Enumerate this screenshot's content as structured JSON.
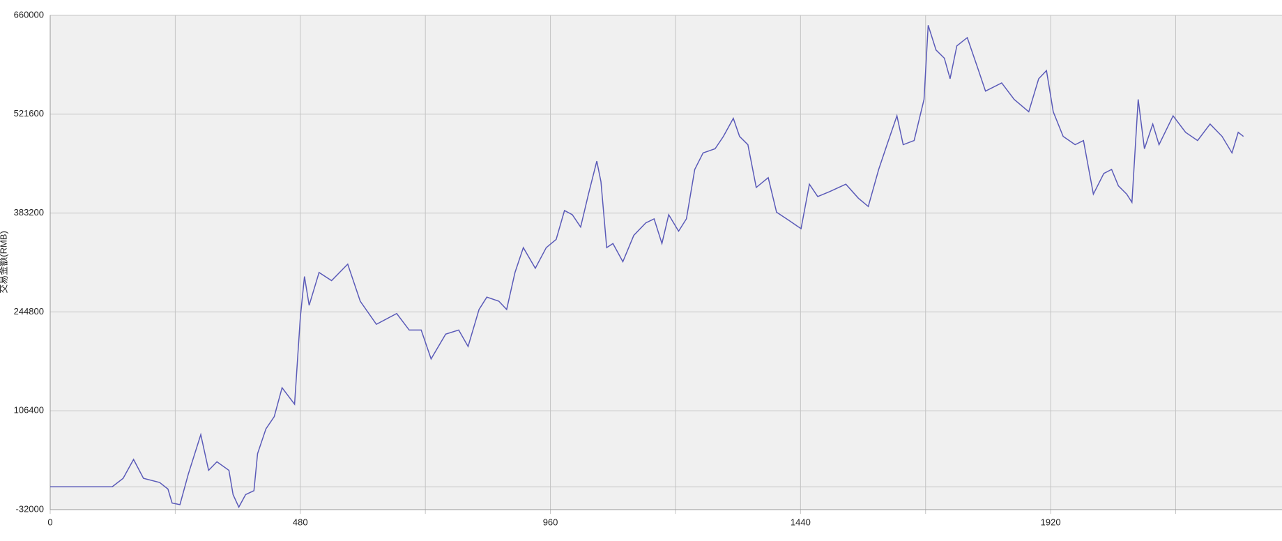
{
  "chart_data": {
    "type": "line",
    "y_label": "交易金额(RMB)",
    "x": [
      0,
      119,
      140,
      160,
      179,
      210,
      226,
      234,
      249,
      265,
      289,
      304,
      320,
      343,
      351,
      362,
      375,
      391,
      398,
      414,
      430,
      445,
      469,
      480,
      488,
      497,
      516,
      540,
      571,
      595,
      626,
      665,
      689,
      712,
      731,
      759,
      784,
      802,
      823,
      838,
      861,
      876,
      892,
      908,
      931,
      952,
      971,
      987,
      1002,
      1018,
      1033,
      1049,
      1057,
      1068,
      1080,
      1099,
      1120,
      1143,
      1159,
      1174,
      1187,
      1206,
      1221,
      1237,
      1253,
      1276,
      1292,
      1311,
      1323,
      1339,
      1355,
      1378,
      1394,
      1418,
      1441,
      1457,
      1473,
      1496,
      1527,
      1551,
      1570,
      1590,
      1606,
      1625,
      1637,
      1658,
      1677,
      1685,
      1700,
      1716,
      1727,
      1740,
      1760,
      1779,
      1795,
      1826,
      1850,
      1878,
      1897,
      1912,
      1925,
      1944,
      1967,
      1983,
      2002,
      2022,
      2037,
      2050,
      2066,
      2076,
      2088,
      2100,
      2116,
      2128,
      2155,
      2179,
      2202,
      2226,
      2249,
      2268,
      2280,
      2290
    ],
    "series": [
      {
        "color": "#5a5ab8",
        "values": [
          0,
          0,
          11800,
          38300,
          11800,
          6000,
          -3200,
          -22800,
          -25000,
          17600,
          73000,
          23000,
          35000,
          23000,
          -11000,
          -28500,
          -11000,
          -5500,
          46400,
          81000,
          98300,
          138700,
          115600,
          236700,
          294400,
          254000,
          300000,
          288600,
          311700,
          259800,
          227500,
          242500,
          219400,
          219400,
          179000,
          213700,
          219400,
          196400,
          248200,
          265500,
          259800,
          248200,
          300000,
          334800,
          305900,
          334800,
          346300,
          386700,
          380900,
          363600,
          409700,
          455900,
          427000,
          334800,
          340500,
          315100,
          352000,
          369400,
          375100,
          340500,
          380900,
          357800,
          375100,
          444300,
          467400,
          473200,
          490500,
          515800,
          490500,
          478900,
          419000,
          432800,
          384400,
          372800,
          361300,
          423600,
          406300,
          413200,
          423600,
          404000,
          392400,
          444300,
          478900,
          519300,
          478900,
          484700,
          542300,
          646100,
          611500,
          600000,
          571200,
          617300,
          628800,
          588500,
          553900,
          565400,
          542300,
          525000,
          571200,
          582700,
          525000,
          490500,
          478900,
          484700,
          409700,
          438600,
          444300,
          421300,
          409700,
          398200,
          542300,
          473200,
          507800,
          478900,
          519300,
          496200,
          484700,
          507800,
          490500,
          467400,
          496200,
          490500
        ]
      }
    ],
    "xlim": [
      0,
      2364
    ],
    "xticks": [
      0,
      480,
      960,
      1440,
      1920
    ],
    "minor_xticks": [
      240,
      720,
      1200,
      1680,
      2160
    ],
    "ylim": [
      -32000,
      660000
    ],
    "yticks": [
      -32000,
      106400,
      244800,
      383200,
      521600,
      660000
    ],
    "y_reference_lines": [
      0
    ],
    "grid": true
  }
}
